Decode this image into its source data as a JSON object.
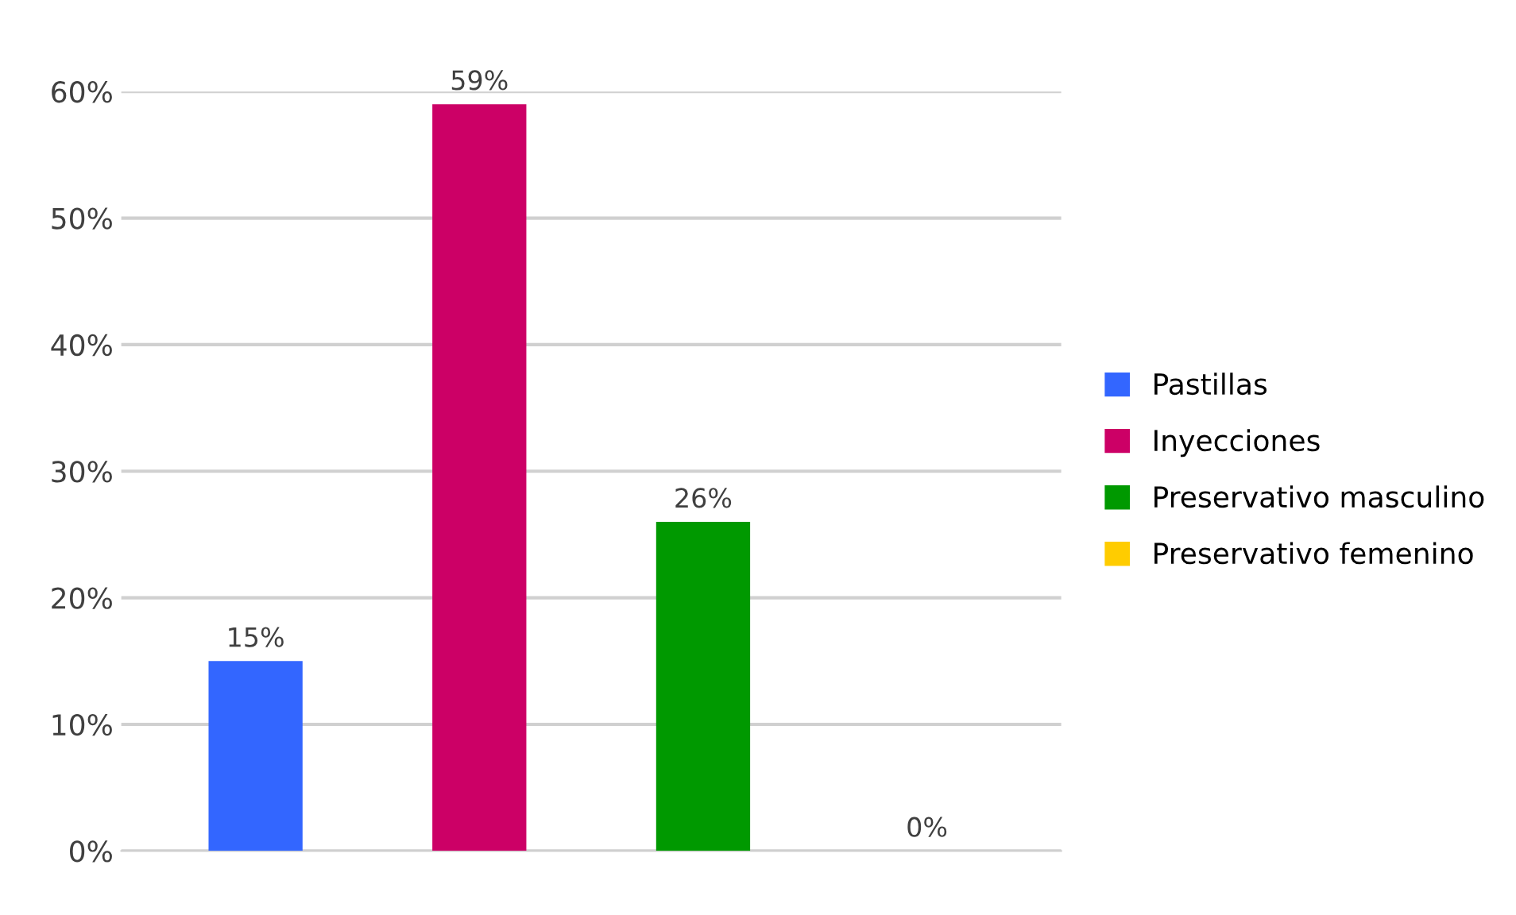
{
  "chart_data": {
    "type": "bar",
    "categories": [
      null,
      null,
      null,
      null
    ],
    "series": [
      {
        "name": "Pastillas",
        "color": "#3366ff",
        "values": [
          15,
          null,
          null,
          null
        ],
        "value_labels": [
          "15%",
          null,
          null,
          null
        ]
      },
      {
        "name": "Inyecciones",
        "color": "#cc0066",
        "values": [
          null,
          59,
          null,
          null
        ],
        "value_labels": [
          null,
          "59%",
          null,
          null
        ]
      },
      {
        "name": "Preservativo masculino",
        "color": "#009900",
        "values": [
          null,
          null,
          26,
          null
        ],
        "value_labels": [
          null,
          null,
          "26%",
          null
        ]
      },
      {
        "name": "Preservativo femenino",
        "color": "#ffcc00",
        "values": [
          null,
          null,
          null,
          0
        ],
        "value_labels": [
          null,
          null,
          null,
          "0%"
        ]
      }
    ],
    "ylim": [
      0,
      60
    ],
    "yticks": [
      {
        "value": 0,
        "label": "0%"
      },
      {
        "value": 10,
        "label": "10%"
      },
      {
        "value": 20,
        "label": "20%"
      },
      {
        "value": 30,
        "label": "30%"
      },
      {
        "value": 40,
        "label": "40%"
      },
      {
        "value": 50,
        "label": "50%"
      },
      {
        "value": 60,
        "label": "60%"
      }
    ],
    "grid": "y",
    "legend": "right"
  }
}
